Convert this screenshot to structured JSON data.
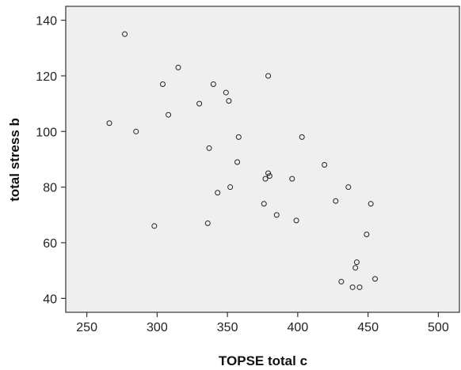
{
  "chart_data": {
    "type": "scatter",
    "title": "",
    "xlabel": "TOPSE total c",
    "ylabel": "total stress b",
    "xlim": [
      235,
      515
    ],
    "ylim": [
      35,
      145
    ],
    "x_ticks": [
      250,
      300,
      350,
      400,
      450,
      500
    ],
    "y_ticks": [
      40,
      60,
      80,
      100,
      120,
      140
    ],
    "grid": false,
    "colors": {
      "plot_background": "#efefef",
      "marker_stroke": "#222222",
      "axis": "#333333"
    },
    "points": [
      {
        "x": 277,
        "y": 135
      },
      {
        "x": 315,
        "y": 123
      },
      {
        "x": 304,
        "y": 117
      },
      {
        "x": 340,
        "y": 117
      },
      {
        "x": 379,
        "y": 120
      },
      {
        "x": 349,
        "y": 114
      },
      {
        "x": 351,
        "y": 111
      },
      {
        "x": 330,
        "y": 110
      },
      {
        "x": 308,
        "y": 106
      },
      {
        "x": 266,
        "y": 103
      },
      {
        "x": 285,
        "y": 100
      },
      {
        "x": 358,
        "y": 98
      },
      {
        "x": 403,
        "y": 98
      },
      {
        "x": 337,
        "y": 94
      },
      {
        "x": 357,
        "y": 89
      },
      {
        "x": 419,
        "y": 88
      },
      {
        "x": 379,
        "y": 85
      },
      {
        "x": 380,
        "y": 84
      },
      {
        "x": 377,
        "y": 83
      },
      {
        "x": 396,
        "y": 83
      },
      {
        "x": 436,
        "y": 80
      },
      {
        "x": 352,
        "y": 80
      },
      {
        "x": 343,
        "y": 78
      },
      {
        "x": 427,
        "y": 75
      },
      {
        "x": 376,
        "y": 74
      },
      {
        "x": 452,
        "y": 74
      },
      {
        "x": 385,
        "y": 70
      },
      {
        "x": 399,
        "y": 68
      },
      {
        "x": 336,
        "y": 67
      },
      {
        "x": 298,
        "y": 66
      },
      {
        "x": 449,
        "y": 63
      },
      {
        "x": 442,
        "y": 53
      },
      {
        "x": 441,
        "y": 51
      },
      {
        "x": 455,
        "y": 47
      },
      {
        "x": 431,
        "y": 46
      },
      {
        "x": 439,
        "y": 44
      },
      {
        "x": 444,
        "y": 44
      }
    ]
  }
}
